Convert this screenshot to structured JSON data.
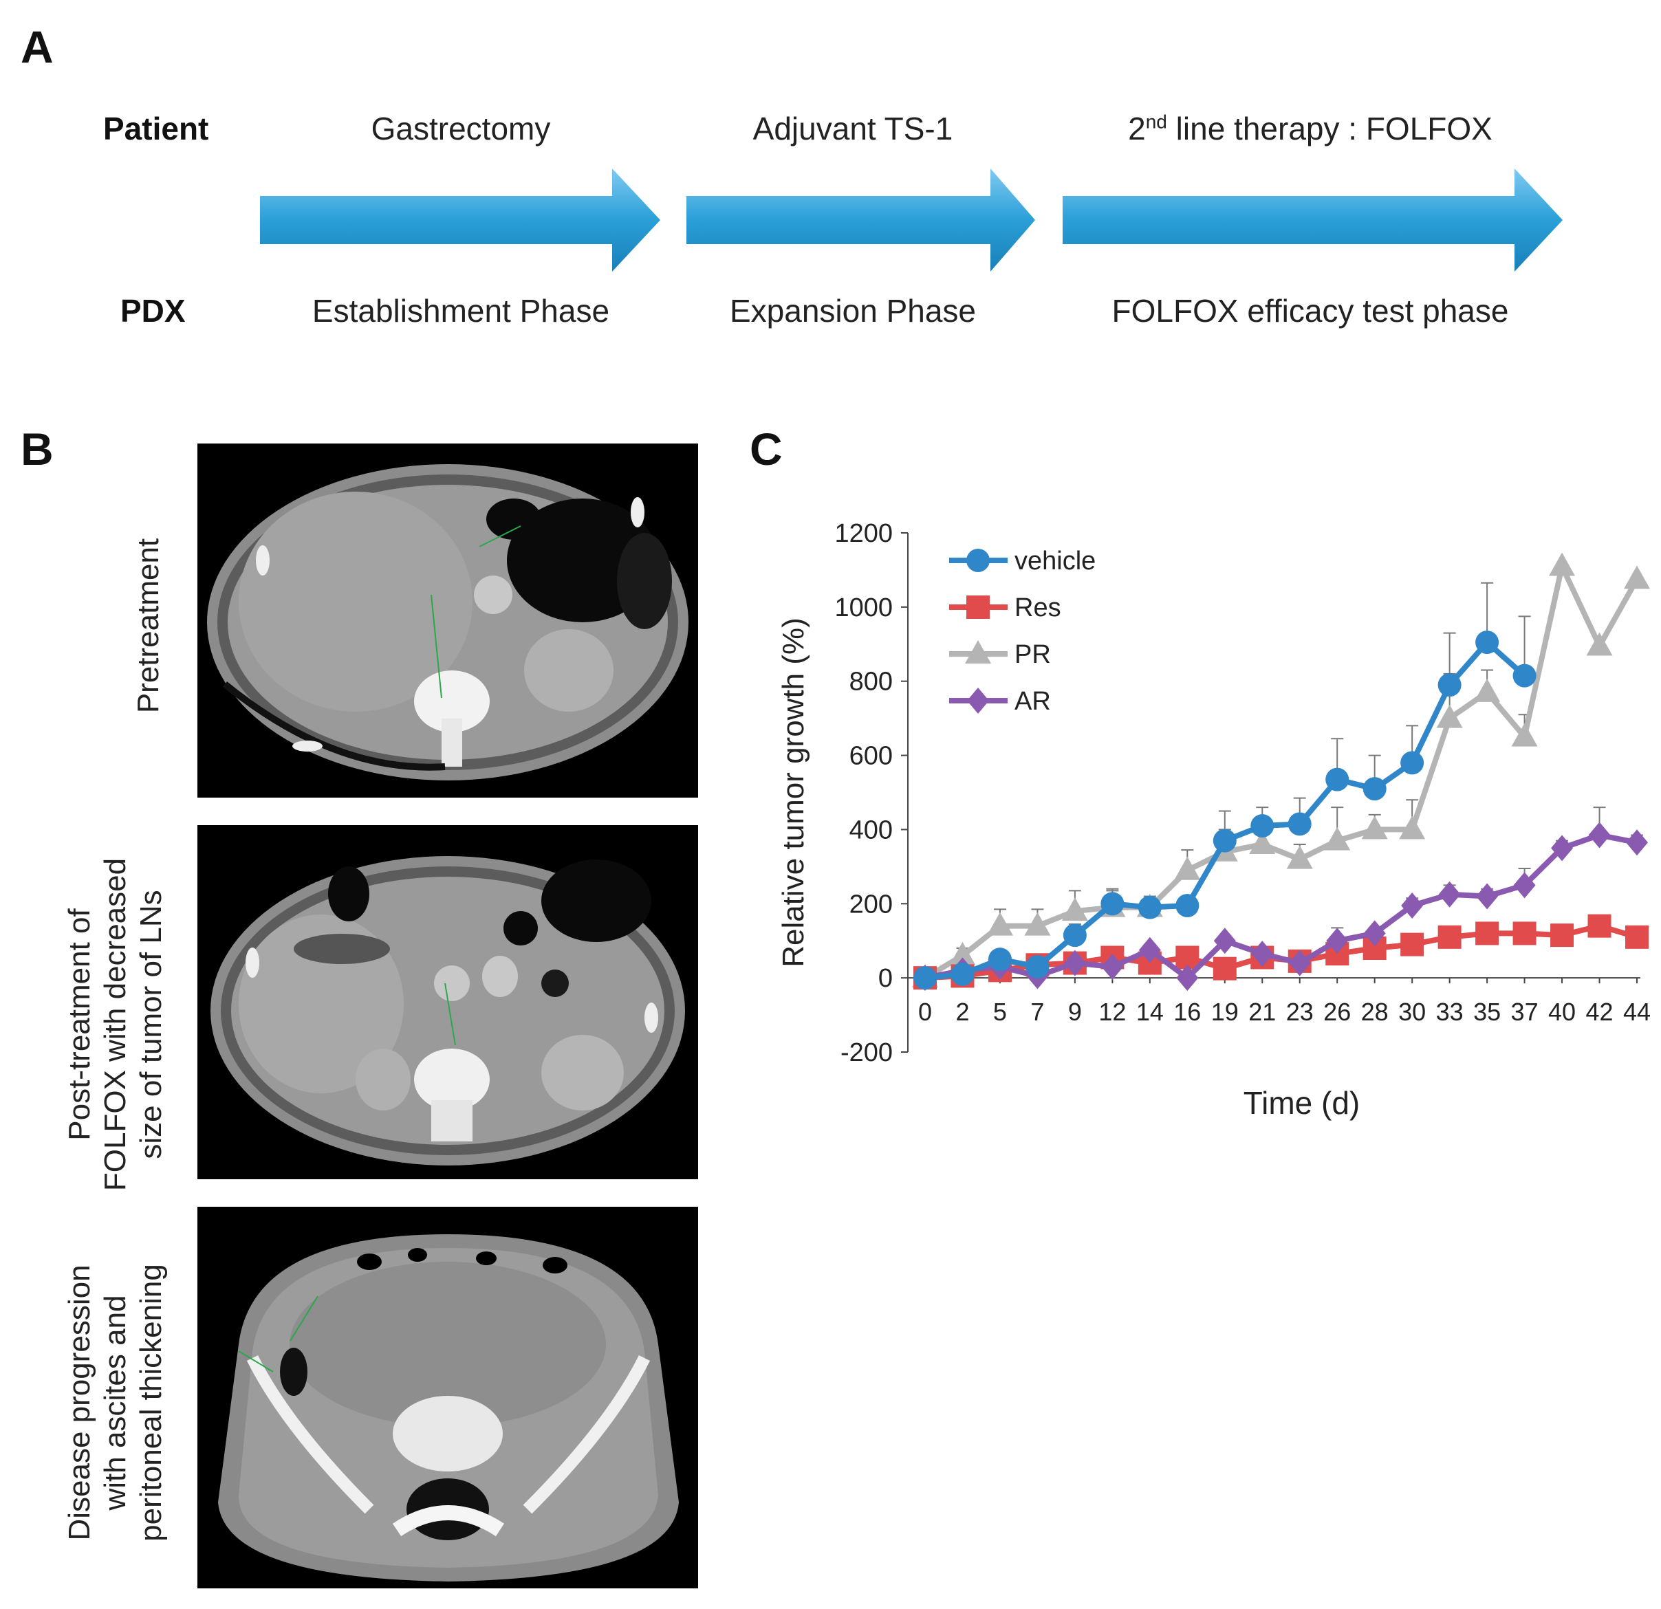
{
  "panels": {
    "a": {
      "letter": "A",
      "row_patient": "Patient",
      "row_pdx": "PDX",
      "patient_steps": [
        "Gastrectomy",
        "Adjuvant TS-1",
        "line therapy : FOLFOX"
      ],
      "patient_step3_prefix": "2",
      "patient_step3_sup": "nd",
      "pdx_phases": [
        "Establishment Phase",
        "Expansion Phase",
        "FOLFOX efficacy test phase"
      ],
      "arrow_color": "#2a9fd8"
    },
    "b": {
      "letter": "B",
      "captions": [
        [
          "Pretreatment"
        ],
        [
          "Post-treatment of",
          "FOLFOX with decreased",
          "size of tumor of  LNs"
        ],
        [
          "Disease progression",
          "with ascites and",
          "peritoneal thickening"
        ]
      ]
    },
    "c": {
      "letter": "C"
    }
  },
  "chart_data": {
    "type": "line",
    "ylabel": "Relative tumor growth (%)",
    "xlabel": "Time (d)",
    "ylim": [
      -200,
      1200
    ],
    "yticks": [
      -200,
      0,
      200,
      400,
      600,
      800,
      1000,
      1200
    ],
    "x": [
      0,
      2,
      5,
      7,
      9,
      12,
      14,
      16,
      19,
      21,
      23,
      26,
      28,
      30,
      33,
      35,
      37,
      40,
      42,
      44
    ],
    "x_labels": [
      "0",
      "2",
      "5",
      "7",
      "9",
      "12",
      "14",
      "16",
      "19",
      "21",
      "23",
      "26",
      "28",
      "30",
      "33",
      "35",
      "37",
      "40",
      "42",
      "44"
    ],
    "legend_position": "top-left",
    "series": [
      {
        "name": "vehicle",
        "color": "#2f86c9",
        "marker": "circle",
        "values": [
          0,
          10,
          50,
          30,
          115,
          200,
          190,
          195,
          370,
          410,
          415,
          535,
          510,
          580,
          790,
          905,
          815,
          null,
          null,
          null
        ],
        "errors": [
          0,
          10,
          25,
          20,
          30,
          40,
          25,
          20,
          80,
          50,
          70,
          110,
          90,
          100,
          140,
          160,
          160,
          null,
          null,
          null
        ]
      },
      {
        "name": "Res",
        "color": "#e24b4b",
        "marker": "square",
        "values": [
          0,
          5,
          20,
          35,
          40,
          55,
          40,
          55,
          25,
          55,
          45,
          65,
          80,
          90,
          110,
          120,
          120,
          115,
          140,
          110
        ],
        "errors": [
          0,
          5,
          10,
          10,
          10,
          10,
          10,
          15,
          10,
          10,
          10,
          15,
          15,
          15,
          15,
          15,
          15,
          15,
          15,
          15
        ]
      },
      {
        "name": "PR",
        "color": "#b4b4b4",
        "marker": "triangle",
        "values": [
          0,
          60,
          140,
          140,
          180,
          190,
          190,
          290,
          340,
          360,
          320,
          370,
          400,
          400,
          700,
          770,
          650,
          1110,
          895,
          1075
        ],
        "errors": [
          0,
          20,
          45,
          45,
          55,
          45,
          30,
          55,
          60,
          40,
          40,
          90,
          40,
          80,
          120,
          60,
          60,
          null,
          null,
          null
        ]
      },
      {
        "name": "AR",
        "color": "#8a5ab0",
        "marker": "diamond",
        "values": [
          0,
          20,
          30,
          5,
          40,
          30,
          75,
          0,
          100,
          65,
          40,
          100,
          120,
          195,
          225,
          220,
          250,
          350,
          385,
          365
        ],
        "errors": [
          0,
          10,
          10,
          10,
          10,
          10,
          15,
          10,
          10,
          10,
          10,
          35,
          15,
          20,
          25,
          20,
          45,
          20,
          75,
          20
        ]
      }
    ]
  }
}
